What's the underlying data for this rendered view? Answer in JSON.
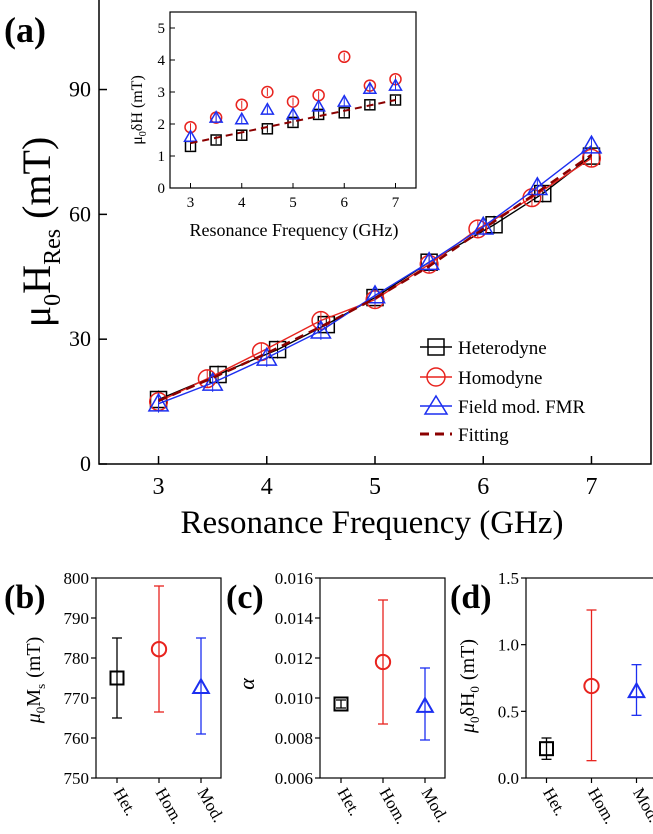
{
  "colors": {
    "heterodyne": "#000000",
    "homodyne": "#e8231e",
    "field_mod": "#1c2ff0",
    "fitting": "#8b0000"
  },
  "chart_data": [
    {
      "id": "a",
      "type": "line",
      "panel_label": "(a)",
      "xlabel": "Resonance Frequency (GHz)",
      "ylabel_main": "μ",
      "ylabel_sub0": "0",
      "ylabel_H": "H",
      "ylabel_subRes": "Res",
      "ylabel_unit": "(mT)",
      "xlim": [
        2.45,
        7.55
      ],
      "ylim": [
        0,
        112
      ],
      "xticks": [
        3,
        4,
        5,
        6,
        7
      ],
      "yticks": [
        0,
        30,
        60,
        90
      ],
      "legend_position": "bottom-right",
      "x": [
        3,
        3.5,
        4,
        4.5,
        5,
        5.5,
        6,
        6.5,
        7
      ],
      "series": [
        {
          "key": "heterodyne",
          "name": "Heterodyne",
          "marker": "square",
          "x": [
            3.0,
            3.55,
            4.1,
            4.55,
            5.0,
            5.5,
            6.1,
            6.55,
            7.0
          ],
          "values": [
            15.5,
            21.5,
            27.5,
            33.5,
            40,
            48.5,
            57.5,
            65,
            74
          ]
        },
        {
          "key": "homodyne",
          "name": "Homodyne",
          "marker": "circle",
          "x": [
            3.0,
            3.45,
            3.95,
            4.5,
            5.0,
            5.5,
            5.95,
            6.45,
            7.0
          ],
          "values": [
            15,
            20.5,
            27,
            34.5,
            39.5,
            48,
            56.5,
            64,
            73.5
          ]
        },
        {
          "key": "field_mod",
          "name": "Field mod. FMR",
          "marker": "triangle",
          "x": [
            3.0,
            3.5,
            4.0,
            4.5,
            5.0,
            5.5,
            6.0,
            6.5,
            7.0
          ],
          "values": [
            14.5,
            19.5,
            25.5,
            32,
            40.5,
            48.5,
            57,
            66.5,
            76.5
          ]
        },
        {
          "key": "fitting",
          "name": "Fitting",
          "marker": "dashed",
          "x": [
            3,
            3.5,
            4,
            4.5,
            5,
            5.5,
            6,
            6.5,
            7
          ],
          "values": [
            15.2,
            20.7,
            26.6,
            33,
            39.8,
            47.5,
            56.5,
            65.3,
            74.3
          ]
        }
      ]
    },
    {
      "id": "inset",
      "type": "scatter",
      "xlabel": "Resonance Frequency (GHz)",
      "ylabel_mu": "μ",
      "ylabel_sub0": "0",
      "ylabel_rest": "δH (mT)",
      "xlim": [
        2.6,
        7.4
      ],
      "ylim": [
        0,
        5.5
      ],
      "xticks": [
        3,
        4,
        5,
        6,
        7
      ],
      "yticks": [
        0,
        1,
        2,
        3,
        4,
        5
      ],
      "series": [
        {
          "key": "heterodyne",
          "marker": "square",
          "x": [
            3,
            3.5,
            4,
            4.5,
            5,
            5.5,
            6,
            6.5,
            7
          ],
          "values": [
            1.3,
            1.5,
            1.65,
            1.85,
            2.05,
            2.3,
            2.35,
            2.6,
            2.75
          ]
        },
        {
          "key": "homodyne",
          "marker": "circle",
          "x": [
            3,
            3.5,
            4,
            4.5,
            5,
            5.5,
            6,
            6.5,
            7
          ],
          "values": [
            1.9,
            2.2,
            2.6,
            3.0,
            2.7,
            2.9,
            4.1,
            3.2,
            3.4
          ]
        },
        {
          "key": "field_mod",
          "marker": "triangle",
          "x": [
            3,
            3.5,
            4,
            4.5,
            5,
            5.5,
            6,
            6.5,
            7
          ],
          "values": [
            1.6,
            2.2,
            2.15,
            2.45,
            2.3,
            2.55,
            2.7,
            3.1,
            3.2
          ]
        },
        {
          "key": "fitting",
          "marker": "dashed",
          "x": [
            3,
            7
          ],
          "values": [
            1.4,
            2.75
          ]
        }
      ]
    },
    {
      "id": "b",
      "type": "scatter",
      "panel_label": "(b)",
      "ylabel_mu": "μ",
      "ylabel_sub0": "0",
      "ylabel_M": "M",
      "ylabel_subs": "s",
      "ylabel_unit": "(mT)",
      "categories": [
        "Het.",
        "Hom.",
        "Mod."
      ],
      "ylim": [
        750,
        800
      ],
      "yticks": [
        750,
        760,
        770,
        780,
        790,
        800
      ],
      "values": [
        775,
        782.2,
        772.7
      ],
      "lower": [
        765,
        766.5,
        761
      ],
      "upper": [
        785,
        798,
        785
      ]
    },
    {
      "id": "c",
      "type": "scatter",
      "panel_label": "(c)",
      "ylabel": "α",
      "categories": [
        "Het.",
        "Hom.",
        "Mod."
      ],
      "ylim": [
        0.006,
        0.016
      ],
      "yticks": [
        "0.006",
        "0.008",
        "0.010",
        "0.012",
        "0.014",
        "0.016"
      ],
      "values": [
        0.0097,
        0.0118,
        0.0096
      ],
      "lower": [
        0.0095,
        0.0087,
        0.0079
      ],
      "upper": [
        0.0099,
        0.0149,
        0.0115
      ]
    },
    {
      "id": "d",
      "type": "scatter",
      "panel_label": "(d)",
      "ylabel_mu": "μ",
      "ylabel_sub0": "0",
      "ylabel_dH": "δH",
      "ylabel_sub0b": "0",
      "ylabel_unit": "(mT)",
      "categories": [
        "Het.",
        "Hom.",
        "Mod."
      ],
      "ylim": [
        0,
        1.5
      ],
      "yticks": [
        "0.0",
        "0.5",
        "1.0",
        "1.5"
      ],
      "values": [
        0.22,
        0.69,
        0.65
      ],
      "lower": [
        0.14,
        0.13,
        0.47
      ],
      "upper": [
        0.3,
        1.26,
        0.85
      ]
    }
  ]
}
